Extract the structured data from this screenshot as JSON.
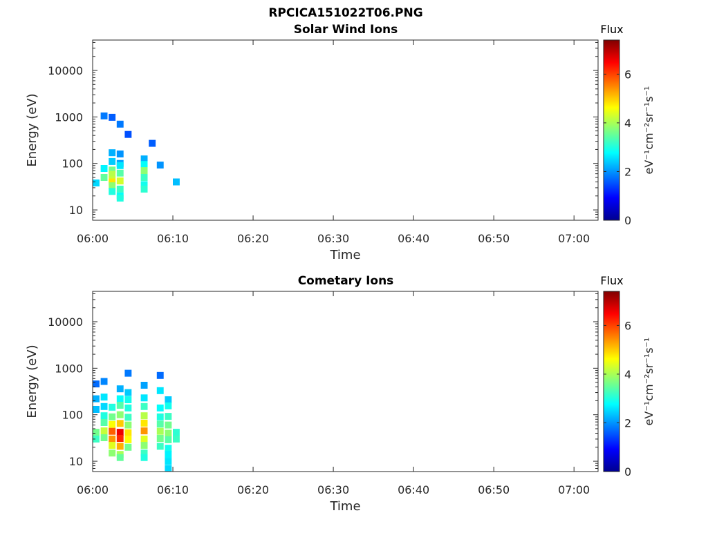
{
  "figure_title": "RPCICA151022T06.PNG",
  "colorbar": {
    "title": "Flux",
    "ticks": [
      "0",
      "2",
      "4",
      "6"
    ],
    "range": [
      0,
      7.4
    ],
    "unit_label": "eV⁻¹cm⁻²sr⁻¹s⁻¹",
    "colormap": "jet"
  },
  "chart_data": [
    {
      "type": "heatmap",
      "title": "Solar Wind Ions",
      "xlabel": "Time",
      "ylabel": "Energy (eV)",
      "x_ticks": [
        "06:00",
        "06:10",
        "06:20",
        "06:30",
        "06:40",
        "06:50",
        "07:00"
      ],
      "y_ticks": [
        "10",
        "100",
        "1000",
        "10000"
      ],
      "y_scale": "log",
      "xlim": [
        "06:00",
        "07:03"
      ],
      "ylim": [
        6,
        45000
      ],
      "colorbar_title": "Flux",
      "cells": [
        [
          "06:01",
          1050,
          1.8
        ],
        [
          "06:02",
          980,
          1.6
        ],
        [
          "06:03",
          700,
          1.8
        ],
        [
          "06:04",
          420,
          1.5
        ],
        [
          "06:07",
          270,
          1.6
        ],
        [
          "06:02",
          170,
          2.2
        ],
        [
          "06:03",
          160,
          2.0
        ],
        [
          "06:06",
          125,
          2.2
        ],
        [
          "06:02",
          110,
          2.4
        ],
        [
          "06:03",
          100,
          2.1
        ],
        [
          "06:03",
          90,
          2.6
        ],
        [
          "06:06",
          95,
          2.8
        ],
        [
          "06:08",
          92,
          2.0
        ],
        [
          "06:01",
          78,
          2.7
        ],
        [
          "06:02",
          72,
          3.6
        ],
        [
          "06:02",
          58,
          4.1
        ],
        [
          "06:03",
          62,
          3.4
        ],
        [
          "06:06",
          70,
          3.8
        ],
        [
          "06:01",
          50,
          3.5
        ],
        [
          "06:02",
          45,
          4.2
        ],
        [
          "06:02",
          40,
          4.8
        ],
        [
          "06:03",
          42,
          4.3
        ],
        [
          "06:06",
          50,
          3.2
        ],
        [
          "06:00",
          38,
          2.5
        ],
        [
          "06:02",
          33,
          3.8
        ],
        [
          "06:03",
          28,
          3.2
        ],
        [
          "06:06",
          35,
          2.9
        ],
        [
          "06:10",
          40,
          2.3
        ],
        [
          "06:02",
          25,
          3.0
        ],
        [
          "06:03",
          20,
          2.8
        ],
        [
          "06:03",
          18,
          3.0
        ],
        [
          "06:06",
          28,
          3.1
        ]
      ]
    },
    {
      "type": "heatmap",
      "title": "Cometary Ions",
      "xlabel": "Time",
      "ylabel": "Energy (eV)",
      "x_ticks": [
        "06:00",
        "06:10",
        "06:20",
        "06:30",
        "06:40",
        "06:50",
        "07:00"
      ],
      "y_ticks": [
        "10",
        "100",
        "1000",
        "10000"
      ],
      "y_scale": "log",
      "xlim": [
        "06:00",
        "07:03"
      ],
      "ylim": [
        6,
        45000
      ],
      "colorbar_title": "Flux",
      "cells": [
        [
          "06:00",
          460,
          1.7
        ],
        [
          "06:01",
          520,
          1.9
        ],
        [
          "06:04",
          780,
          1.8
        ],
        [
          "06:08",
          700,
          1.7
        ],
        [
          "06:06",
          430,
          2.1
        ],
        [
          "06:03",
          360,
          2.2
        ],
        [
          "06:04",
          300,
          2.4
        ],
        [
          "06:08",
          330,
          2.6
        ],
        [
          "06:00",
          220,
          2.2
        ],
        [
          "06:01",
          240,
          2.6
        ],
        [
          "06:03",
          220,
          2.8
        ],
        [
          "06:04",
          210,
          2.9
        ],
        [
          "06:06",
          230,
          2.6
        ],
        [
          "06:09",
          210,
          2.4
        ],
        [
          "06:00",
          130,
          2.3
        ],
        [
          "06:01",
          150,
          2.5
        ],
        [
          "06:02",
          145,
          3.0
        ],
        [
          "06:03",
          160,
          3.4
        ],
        [
          "06:04",
          140,
          3.0
        ],
        [
          "06:06",
          150,
          3.2
        ],
        [
          "06:08",
          140,
          2.8
        ],
        [
          "06:09",
          155,
          2.9
        ],
        [
          "06:01",
          95,
          3.0
        ],
        [
          "06:02",
          90,
          3.6
        ],
        [
          "06:03",
          100,
          3.8
        ],
        [
          "06:04",
          88,
          3.2
        ],
        [
          "06:06",
          95,
          4.1
        ],
        [
          "06:08",
          90,
          3.0
        ],
        [
          "06:09",
          92,
          3.2
        ],
        [
          "06:01",
          68,
          3.4
        ],
        [
          "06:02",
          62,
          4.6
        ],
        [
          "06:03",
          65,
          5.0
        ],
        [
          "06:04",
          60,
          3.8
        ],
        [
          "06:06",
          66,
          4.8
        ],
        [
          "06:08",
          63,
          3.4
        ],
        [
          "06:09",
          60,
          3.6
        ],
        [
          "06:00",
          42,
          3.6
        ],
        [
          "06:01",
          45,
          4.2
        ],
        [
          "06:02",
          44,
          5.8
        ],
        [
          "06:03",
          42,
          6.6
        ],
        [
          "06:04",
          41,
          4.8
        ],
        [
          "06:06",
          45,
          5.4
        ],
        [
          "06:08",
          44,
          4.0
        ],
        [
          "06:09",
          40,
          3.8
        ],
        [
          "06:10",
          42,
          3.1
        ],
        [
          "06:00",
          30,
          3.2
        ],
        [
          "06:01",
          32,
          3.6
        ],
        [
          "06:02",
          30,
          5.4
        ],
        [
          "06:03",
          31,
          6.2
        ],
        [
          "06:04",
          29,
          4.6
        ],
        [
          "06:06",
          30,
          4.4
        ],
        [
          "06:08",
          31,
          3.6
        ],
        [
          "06:09",
          29,
          3.4
        ],
        [
          "06:10",
          30,
          3.2
        ],
        [
          "06:02",
          22,
          4.4
        ],
        [
          "06:03",
          21,
          5.2
        ],
        [
          "06:04",
          20,
          3.6
        ],
        [
          "06:06",
          22,
          3.8
        ],
        [
          "06:08",
          21,
          3.2
        ],
        [
          "06:09",
          19,
          2.9
        ],
        [
          "06:02",
          15,
          3.8
        ],
        [
          "06:03",
          14,
          4.0
        ],
        [
          "06:06",
          15,
          3.2
        ],
        [
          "06:09",
          14,
          2.7
        ],
        [
          "06:03",
          12,
          3.5
        ],
        [
          "06:06",
          12,
          3.0
        ],
        [
          "06:09",
          10,
          2.6
        ],
        [
          "06:09",
          7,
          2.5
        ]
      ]
    }
  ]
}
